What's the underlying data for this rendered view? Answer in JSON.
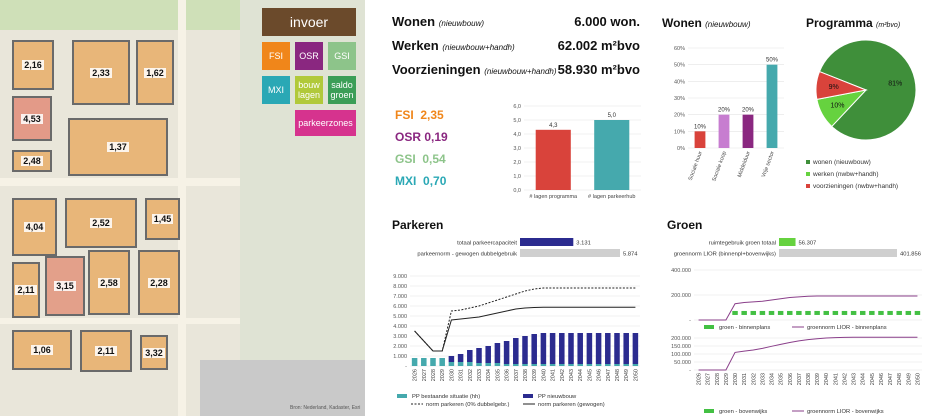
{
  "map": {
    "block_labels": [
      "2,16",
      "2,33",
      "1,62",
      "4,53",
      "1,37",
      "2,48",
      "4,04",
      "2,52",
      "1,45",
      "3,15",
      "2,58",
      "2,28",
      "2,11",
      "1,06",
      "2,11",
      "3,32"
    ],
    "attribution": "Bron: Nederland, Kadaster, Esri"
  },
  "controls": {
    "invoer": "invoer",
    "fsi": "FSI",
    "osr": "OSR",
    "gsi": "GSI",
    "mxi": "MXI",
    "bouwlagen": "bouw lagen",
    "saldogroen": "saldo groen",
    "parkeerzones": "parkeerzones"
  },
  "colors": {
    "fsi": "#f0861a",
    "osr": "#8a2780",
    "gsi": "#8dc48a",
    "mxi": "#2aa8b5",
    "bouwlagen": "#b1c93a",
    "saldogroen": "#3c9e57",
    "parkeerzones": "#d6338e",
    "invoer": "#6b4a2b"
  },
  "kpis": [
    {
      "label": "Wonen",
      "sub": "(nieuwbouw)",
      "value": "6.000 won."
    },
    {
      "label": "Werken",
      "sub": "(nieuwbouw+handh)",
      "value": "62.002 m²bvo"
    },
    {
      "label": "Voorzieningen",
      "sub": "(nieuwbouw+handh)",
      "value": "58.930 m²bvo"
    }
  ],
  "indices": [
    {
      "name": "FSI",
      "value": "2,35"
    },
    {
      "name": "OSR",
      "value": "0,19"
    },
    {
      "name": "GSI",
      "value": "0,54"
    },
    {
      "name": "MXI",
      "value": "0,70"
    }
  ],
  "section_titles": {
    "wonen": "Wonen",
    "wonen_sub": "(nieuwbouw)",
    "programma": "Programma",
    "programma_sub": "(m²bvo)",
    "parkeren": "Parkeren",
    "groen": "Groen"
  },
  "chart_data": [
    {
      "id": "lagen",
      "type": "bar",
      "categories": [
        "# lagen programma",
        "# lagen parkeerhub"
      ],
      "values": [
        4.3,
        5.0
      ],
      "value_labels": [
        "4,3",
        "5,0"
      ],
      "colors": [
        "#d9433b",
        "#45a9ad"
      ],
      "ylim": [
        0,
        6
      ],
      "yticks": [
        "0,0",
        "1,0",
        "2,0",
        "3,0",
        "4,0",
        "5,0",
        "6,0"
      ]
    },
    {
      "id": "woningtypen",
      "type": "bar",
      "categories": [
        "Sociale huur",
        "Sociale koop",
        "Middelduur",
        "Vrije sector"
      ],
      "values": [
        10,
        20,
        20,
        50
      ],
      "value_labels": [
        "10%",
        "20%",
        "20%",
        "50%"
      ],
      "colors": [
        "#d9433b",
        "#c77dd0",
        "#8a2780",
        "#45a9ad"
      ],
      "ylim": [
        0,
        60
      ],
      "yticks": [
        "0%",
        "10%",
        "20%",
        "30%",
        "40%",
        "50%",
        "60%"
      ]
    },
    {
      "id": "programma",
      "type": "pie",
      "slices": [
        {
          "name": "wonen (nieuwbouw)",
          "value": 81,
          "label": "81%",
          "color": "#3f8f3a"
        },
        {
          "name": "werken (nwbw+handh)",
          "value": 10,
          "label": "10%",
          "color": "#66d23f"
        },
        {
          "name": "voorzieningen (nwbw+handh)",
          "value": 9,
          "label": "9%",
          "color": "#d9433b"
        }
      ]
    },
    {
      "id": "parkeer_summary",
      "type": "bar",
      "orientation": "horizontal",
      "categories": [
        "totaal parkeercapaciteit",
        "parkeernorm - gewogen dubbelgebruik"
      ],
      "values": [
        3131,
        5874
      ],
      "value_labels": [
        "3.131",
        "5.874"
      ],
      "colors": [
        "#2b2b8f",
        "#cfcfcf"
      ],
      "xlim": [
        0,
        5874
      ]
    },
    {
      "id": "parkeren_tijd",
      "type": "bar",
      "x": [
        "2026",
        "2027",
        "2028",
        "2029",
        "2030",
        "2031",
        "2032",
        "2033",
        "2034",
        "2035",
        "2036",
        "2037",
        "2038",
        "2039",
        "2040",
        "2041",
        "2042",
        "2043",
        "2044",
        "2045",
        "2046",
        "2047",
        "2048",
        "2049",
        "2050"
      ],
      "ylim": [
        0,
        9000
      ],
      "yticks": [
        "-",
        "1.000",
        "2.000",
        "3.000",
        "4.000",
        "5.000",
        "6.000",
        "7.000",
        "8.000",
        "9.000"
      ],
      "series": [
        {
          "name": "PP bestaande situatie (hh)",
          "kind": "bar",
          "color": "#45a9ad",
          "values": [
            800,
            800,
            800,
            800,
            400,
            400,
            400,
            300,
            300,
            300,
            200,
            200,
            200,
            200,
            200,
            200,
            200,
            200,
            200,
            200,
            200,
            200,
            200,
            200,
            200
          ]
        },
        {
          "name": "PP nieuwbouw",
          "kind": "bar",
          "color": "#2b2b8f",
          "values": [
            0,
            0,
            0,
            0,
            600,
            800,
            1200,
            1500,
            1700,
            2000,
            2300,
            2600,
            2800,
            3000,
            3100,
            3100,
            3100,
            3100,
            3100,
            3100,
            3100,
            3100,
            3100,
            3100,
            3100
          ]
        },
        {
          "name": "norm parkeren (0% dubbelgebr.)",
          "kind": "dashed",
          "color": "#222222",
          "values": [
            3500,
            2500,
            1500,
            1500,
            5500,
            5600,
            5800,
            6000,
            6300,
            6600,
            6900,
            7200,
            7500,
            7700,
            7800,
            7800,
            7800,
            7800,
            7800,
            7800,
            7800,
            7800,
            7800,
            7800,
            7800
          ]
        },
        {
          "name": "norm parkeren (gewogen)",
          "kind": "line",
          "color": "#222222",
          "values": [
            3500,
            2500,
            1500,
            1500,
            4600,
            4700,
            4800,
            4900,
            5100,
            5300,
            5500,
            5700,
            5800,
            5850,
            5874,
            5874,
            5874,
            5874,
            5874,
            5874,
            5874,
            5874,
            5874,
            5874,
            5874
          ]
        }
      ]
    },
    {
      "id": "groen_summary",
      "type": "bar",
      "orientation": "horizontal",
      "categories": [
        "ruimtegebruik groen totaal",
        "groennorm LIOR (binnenpl+bovenwijks)"
      ],
      "values": [
        56307,
        401856
      ],
      "value_labels": [
        "56.307",
        "401.856"
      ],
      "colors": [
        "#66d23f",
        "#cfcfcf"
      ],
      "xlim": [
        0,
        401856
      ]
    },
    {
      "id": "groen_binnenplans",
      "type": "line",
      "x": [
        "2026",
        "2027",
        "2028",
        "2029",
        "2030",
        "2031",
        "2032",
        "2033",
        "2034",
        "2035",
        "2036",
        "2037",
        "2038",
        "2039",
        "2040",
        "2041",
        "2042",
        "2043",
        "2044",
        "2045",
        "2046",
        "2047",
        "2048",
        "2049",
        "2050"
      ],
      "ylim": [
        0,
        400000
      ],
      "yticks": [
        "-",
        "200.000",
        "400.000"
      ],
      "series": [
        {
          "name": "groen - binnenplans",
          "kind": "dashed-bar",
          "color": "#43c043",
          "values": [
            0,
            0,
            0,
            0,
            56307,
            56307,
            56307,
            56307,
            56307,
            56307,
            56307,
            56307,
            56307,
            56307,
            56307,
            56307,
            56307,
            56307,
            56307,
            56307,
            56307,
            56307,
            56307,
            56307,
            56307
          ]
        },
        {
          "name": "groennorm LIOR - binnenplans",
          "kind": "line",
          "color": "#8a3f8a",
          "values": [
            0,
            0,
            0,
            0,
            130000,
            140000,
            145000,
            150000,
            160000,
            170000,
            180000,
            185000,
            190000,
            192000,
            192000,
            192000,
            192000,
            192000,
            192000,
            192000,
            192000,
            192000,
            192000,
            192000,
            192000
          ]
        }
      ]
    },
    {
      "id": "groen_bovenwijks",
      "type": "line",
      "x": [
        "2026",
        "2027",
        "2028",
        "2029",
        "2030",
        "2031",
        "2032",
        "2033",
        "2034",
        "2035",
        "2036",
        "2037",
        "2038",
        "2039",
        "2040",
        "2041",
        "2042",
        "2043",
        "2044",
        "2045",
        "2046",
        "2047",
        "2048",
        "2049",
        "2050"
      ],
      "ylim": [
        0,
        200000
      ],
      "yticks": [
        "-",
        "50.000",
        "100.000",
        "150.000",
        "200.000"
      ],
      "series": [
        {
          "name": "groen - bovenwijks",
          "kind": "dashed-bar",
          "color": "#43c043",
          "values": [
            0,
            0,
            0,
            0,
            0,
            0,
            0,
            0,
            0,
            0,
            0,
            0,
            0,
            0,
            0,
            0,
            0,
            0,
            0,
            0,
            0,
            0,
            0,
            0,
            0
          ]
        },
        {
          "name": "groennorm LIOR - bovenwijks",
          "kind": "line",
          "color": "#8a3f8a",
          "values": [
            0,
            0,
            0,
            0,
            110000,
            118000,
            125000,
            135000,
            148000,
            160000,
            172000,
            182000,
            190000,
            195000,
            200000,
            202000,
            204000,
            205000,
            205000,
            205000,
            205000,
            205000,
            205000,
            205000,
            205000
          ]
        }
      ]
    }
  ]
}
